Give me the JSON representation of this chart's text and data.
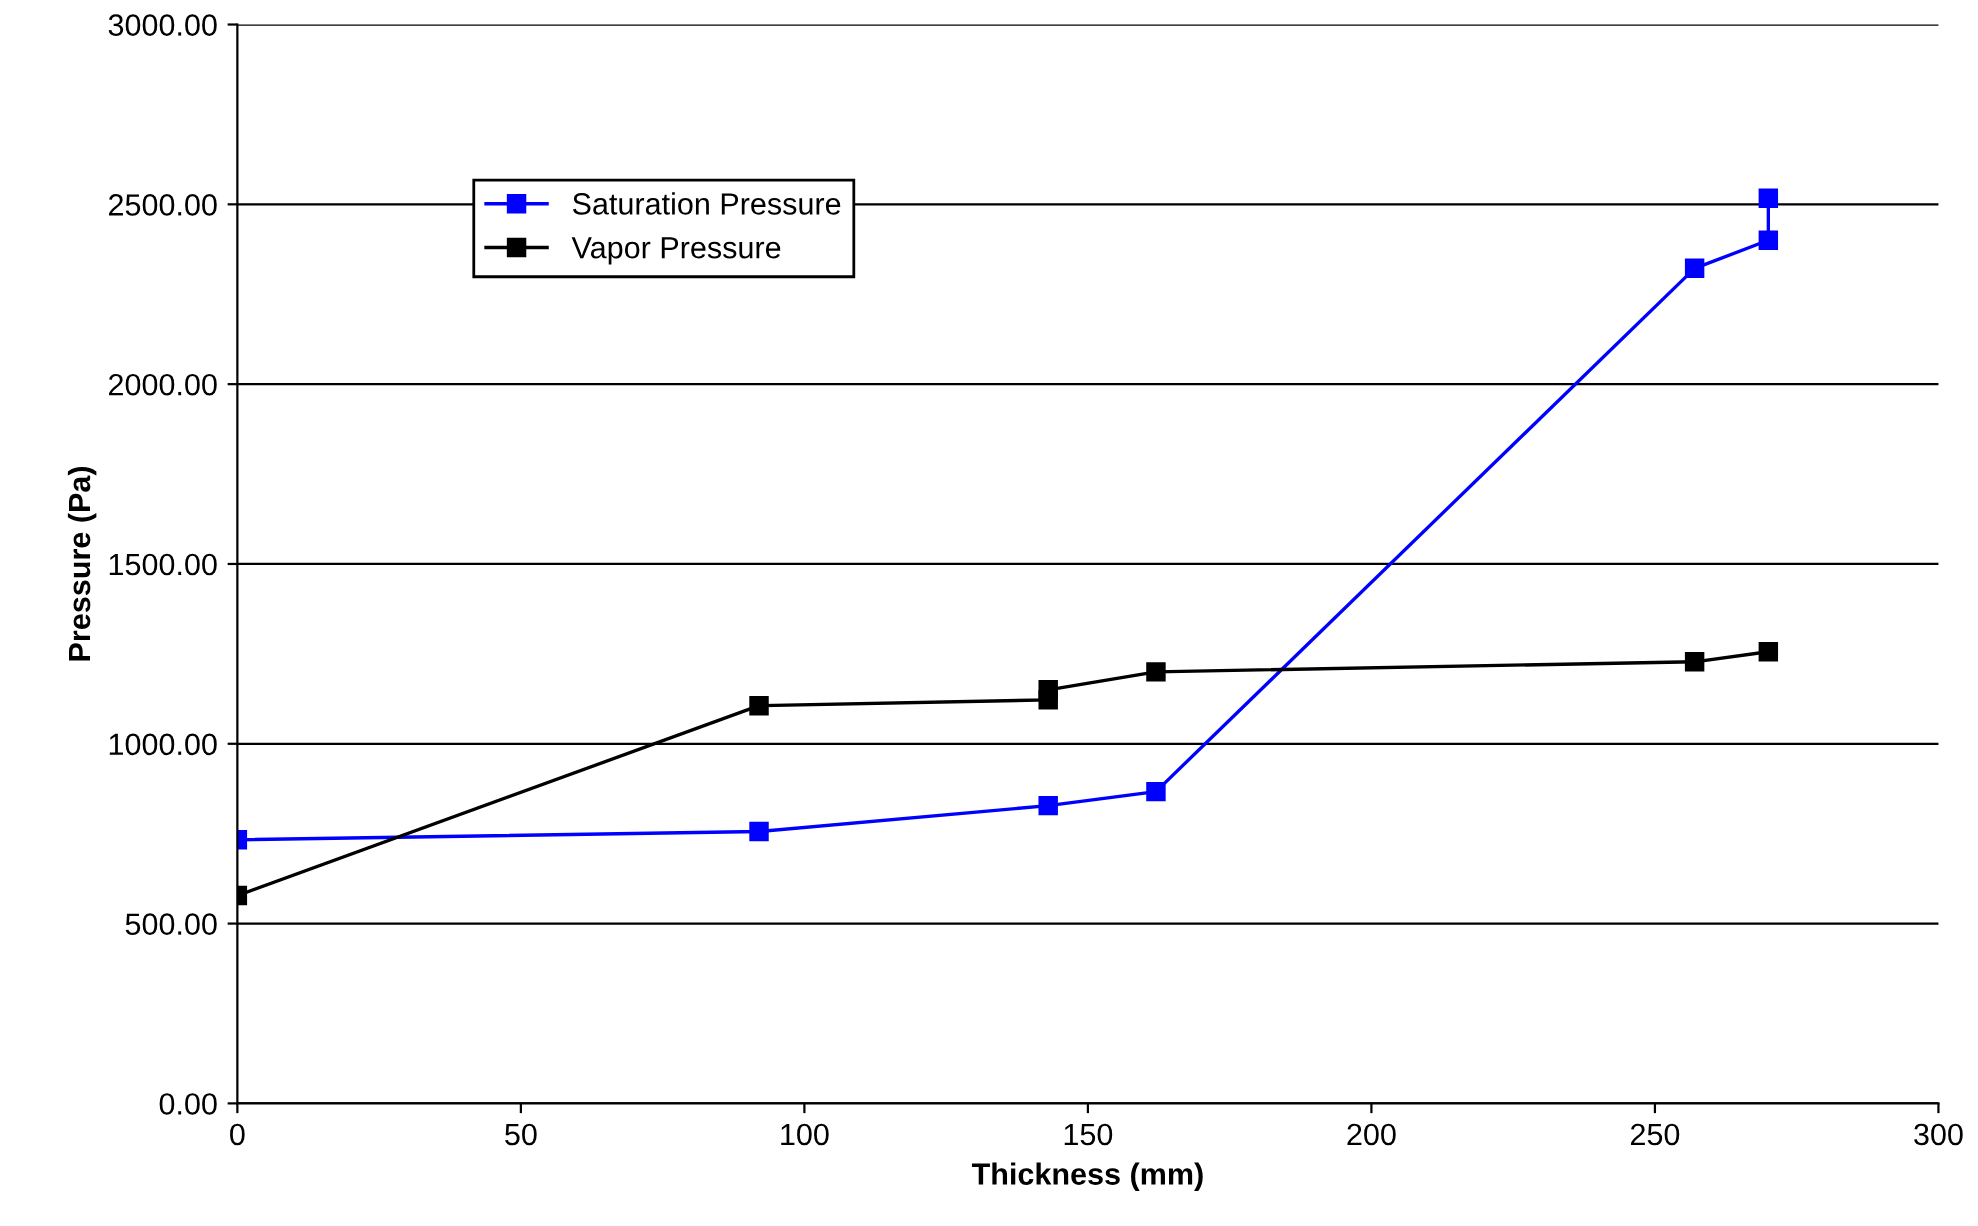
{
  "chart_data": {
    "type": "line",
    "xlabel": "Thickness (mm)",
    "ylabel": "Pressure (Pa)",
    "xlim": [
      0,
      300
    ],
    "xticks": [
      0,
      50,
      100,
      150,
      200,
      250,
      300
    ],
    "ylim": [
      0,
      3000
    ],
    "yticks": [
      {
        "value": 0,
        "label": "0.00"
      },
      {
        "value": 500,
        "label": "500.00"
      },
      {
        "value": 1000,
        "label": "1000.00"
      },
      {
        "value": 1500,
        "label": "1500.00"
      },
      {
        "value": 2000,
        "label": "2000.00"
      },
      {
        "value": 2500,
        "label": "2500.00"
      },
      {
        "value": 3000,
        "label": "3000.00"
      }
    ],
    "grid": "y",
    "legend": "top left",
    "marker": "square",
    "line_style": "solid",
    "series": [
      {
        "name": "Saturation Pressure",
        "color": "#0000ff",
        "x": [
          0,
          92,
          143,
          162,
          257,
          270,
          270
        ],
        "values": [
          733,
          756,
          828,
          867,
          2322,
          2400,
          2517
        ]
      },
      {
        "name": "Vapor Pressure",
        "color": "#000000",
        "x": [
          0,
          92,
          143,
          143,
          162,
          257,
          270
        ],
        "values": [
          578,
          1106,
          1122,
          1150,
          1200,
          1228,
          1256
        ]
      }
    ]
  }
}
